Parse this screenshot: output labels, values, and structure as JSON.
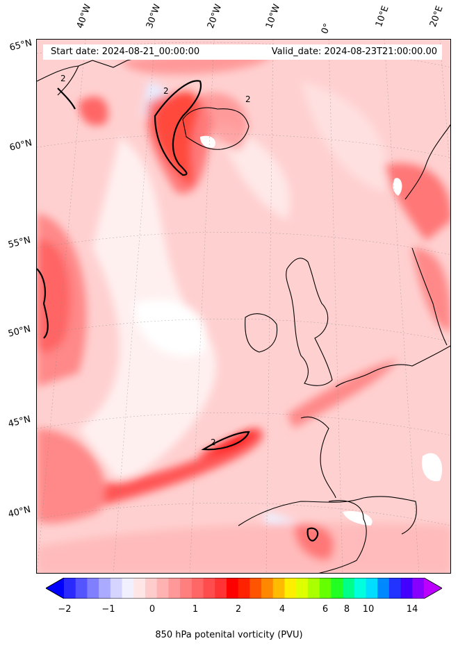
{
  "header": {
    "start_date": "Start date: 2024-08-21_00:00:00",
    "valid_date": "Valid_date: 2024-08-23T21:00:00.00"
  },
  "map": {
    "longitude_labels": [
      "40°W",
      "30°W",
      "20°W",
      "10°W",
      "0°",
      "10°E",
      "20°E"
    ],
    "latitude_labels": [
      "65°N",
      "60°N",
      "55°N",
      "50°N",
      "45°N",
      "40°N"
    ],
    "contour_label": "2"
  },
  "colorbar": {
    "title": "850 hPa potenital vorticity (PVU)",
    "tick_labels": [
      "−2",
      "−1",
      "0",
      "1",
      "2",
      "4",
      "6",
      "8",
      "10",
      "14"
    ],
    "colors": [
      "#0000ff",
      "#2a2aff",
      "#5555ff",
      "#7f7fff",
      "#aaaaff",
      "#d4d4ff",
      "#f0f0ff",
      "#ffe6e6",
      "#ffcccc",
      "#ffb2b2",
      "#ff9999",
      "#ff7f7f",
      "#ff6666",
      "#ff4c4c",
      "#ff3333",
      "#ff0000",
      "#ff2200",
      "#ff5500",
      "#ff8800",
      "#ffbb00",
      "#ffee00",
      "#ddff00",
      "#aaff00",
      "#66ff00",
      "#22ff22",
      "#00ff88",
      "#00ffdd",
      "#00ddff",
      "#0088ff",
      "#2233ff",
      "#4400ff",
      "#8800ff",
      "#bb00ff"
    ]
  }
}
